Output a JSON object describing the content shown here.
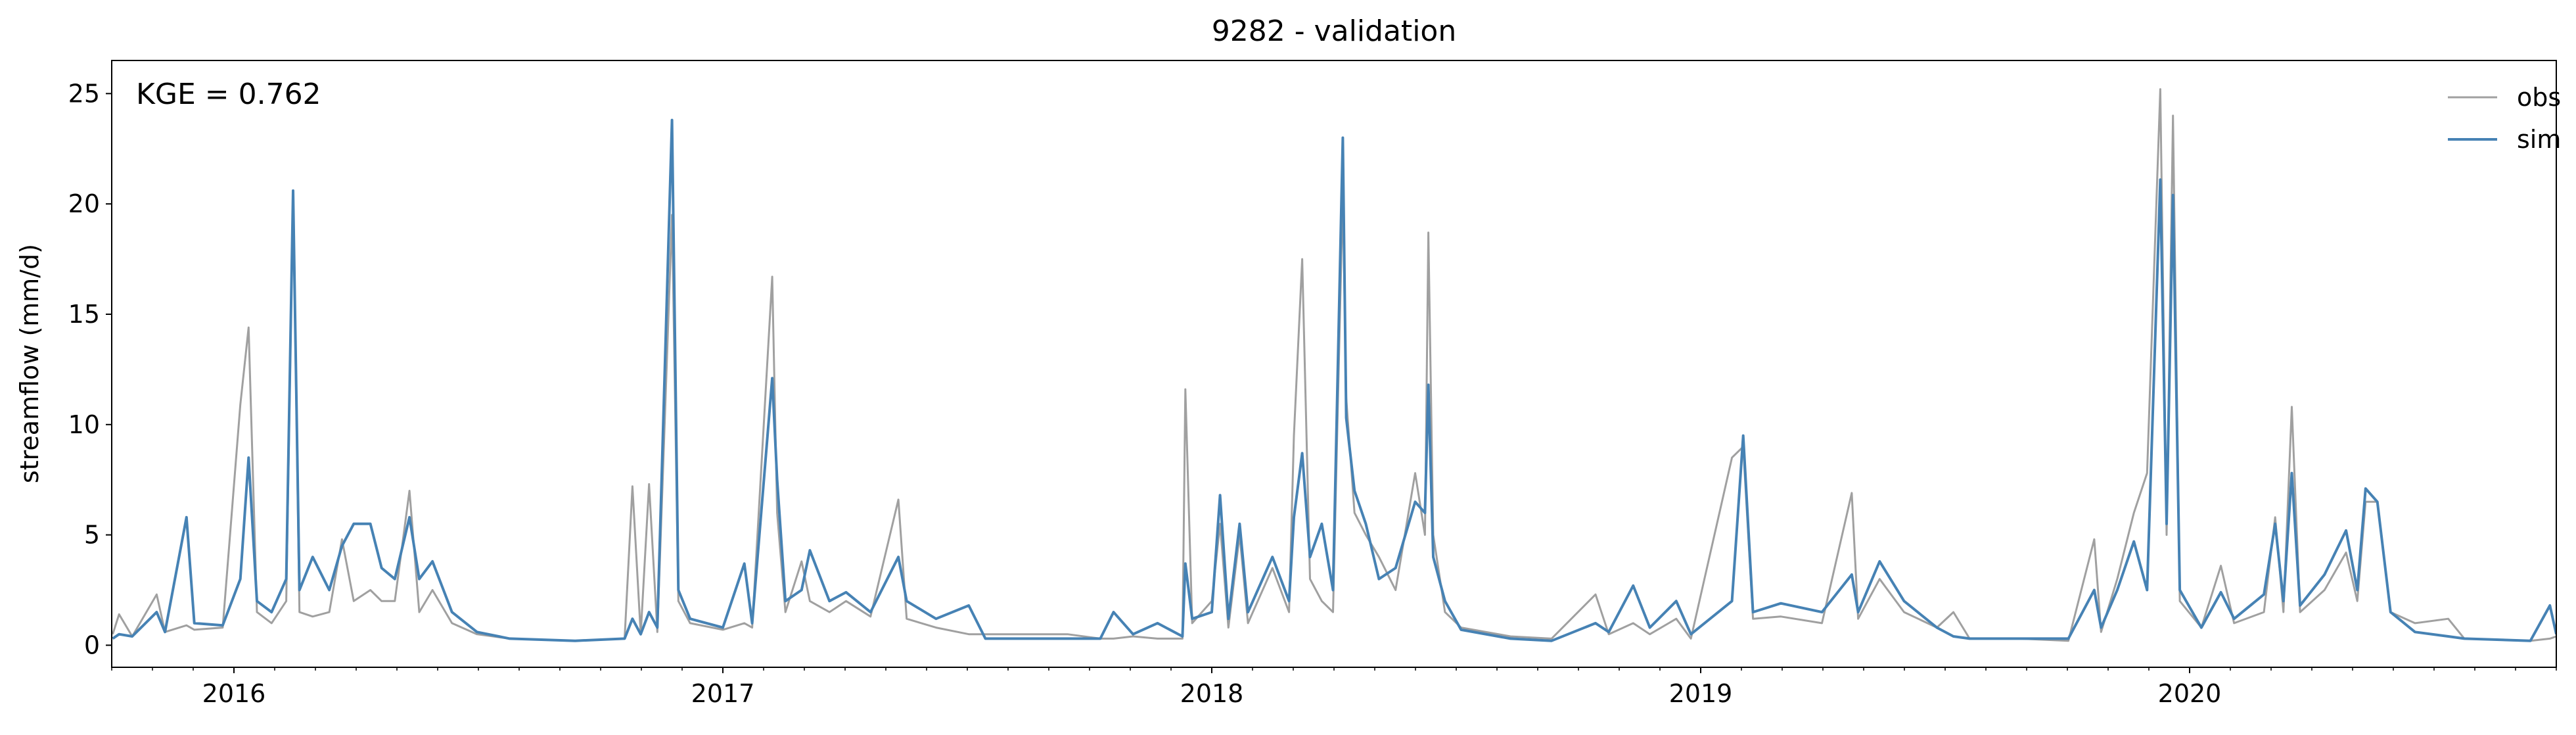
{
  "chart_data": {
    "type": "line",
    "title": "9282 - validation",
    "y_label": "streamflow (mm/d)",
    "annotation": "KGE = 0.762",
    "legend": "upper right",
    "x": [
      2015.752,
      2015.765,
      2015.792,
      2015.842,
      2015.859,
      2015.903,
      2015.919,
      2015.977,
      2016.013,
      2016.03,
      2016.047,
      2016.077,
      2016.107,
      2016.121,
      2016.134,
      2016.161,
      2016.195,
      2016.221,
      2016.245,
      2016.279,
      2016.302,
      2016.329,
      2016.359,
      2016.379,
      2016.406,
      2016.446,
      2016.497,
      2016.564,
      2016.698,
      2016.799,
      2016.815,
      2016.832,
      2016.849,
      2016.866,
      2016.896,
      2016.909,
      2016.933,
      2017.0,
      2017.044,
      2017.06,
      2017.101,
      2017.111,
      2017.128,
      2017.161,
      2017.178,
      2017.218,
      2017.252,
      2017.302,
      2017.359,
      2017.376,
      2017.436,
      2017.503,
      2017.537,
      2017.705,
      2017.772,
      2017.799,
      2017.839,
      2017.889,
      2017.94,
      2017.946,
      2017.96,
      2018.0,
      2018.017,
      2018.034,
      2018.057,
      2018.074,
      2018.124,
      2018.158,
      2018.168,
      2018.185,
      2018.201,
      2018.225,
      2018.248,
      2018.268,
      2018.275,
      2018.292,
      2018.315,
      2018.342,
      2018.376,
      2018.416,
      2018.436,
      2018.443,
      2018.453,
      2018.477,
      2018.51,
      2018.611,
      2018.695,
      2018.785,
      2018.812,
      2018.862,
      2018.896,
      2018.95,
      2018.98,
      2019.064,
      2019.087,
      2019.107,
      2019.164,
      2019.248,
      2019.309,
      2019.322,
      2019.366,
      2019.416,
      2019.483,
      2019.517,
      2019.55,
      2019.651,
      2019.752,
      2019.805,
      2019.819,
      2019.852,
      2019.886,
      2019.913,
      2019.94,
      2019.953,
      2019.966,
      2019.98,
      2020.024,
      2020.064,
      2020.091,
      2020.152,
      2020.175,
      2020.192,
      2020.209,
      2020.226,
      2020.276,
      2020.32,
      2020.343,
      2020.36,
      2020.384,
      2020.411,
      2020.461,
      2020.529,
      2020.562,
      2020.697,
      2020.737,
      2020.75
    ],
    "series": [
      {
        "name": "obs",
        "color": "#a0a0a0",
        "values": [
          0.5,
          1.4,
          0.4,
          2.3,
          0.6,
          0.9,
          0.7,
          0.8,
          10.9,
          14.4,
          1.5,
          1.0,
          2.0,
          20.5,
          1.5,
          1.3,
          1.5,
          4.8,
          2.0,
          2.5,
          2.0,
          2.0,
          7.0,
          1.5,
          2.5,
          1.0,
          0.5,
          0.3,
          0.2,
          0.3,
          7.2,
          0.5,
          7.3,
          0.6,
          19.5,
          2.0,
          1.0,
          0.7,
          1.0,
          0.8,
          16.7,
          6.0,
          1.5,
          3.8,
          2.0,
          1.5,
          2.0,
          1.3,
          6.6,
          1.2,
          0.8,
          0.5,
          0.5,
          0.5,
          0.3,
          0.3,
          0.4,
          0.3,
          0.3,
          11.6,
          1.0,
          2.0,
          5.5,
          0.8,
          5.0,
          1.0,
          3.5,
          1.5,
          9.5,
          17.5,
          3.0,
          2.0,
          1.5,
          20.5,
          11.2,
          6.0,
          5.0,
          4.0,
          2.5,
          7.8,
          5.0,
          18.7,
          5.0,
          1.5,
          0.8,
          0.4,
          0.3,
          2.3,
          0.5,
          1.0,
          0.5,
          1.2,
          0.3,
          8.5,
          9.0,
          1.2,
          1.3,
          1.0,
          6.9,
          1.2,
          3.0,
          1.5,
          0.8,
          1.5,
          0.3,
          0.3,
          0.2,
          4.8,
          0.6,
          3.0,
          6.0,
          7.8,
          25.2,
          5.0,
          24.0,
          2.0,
          0.8,
          3.6,
          1.0,
          1.5,
          5.8,
          1.5,
          10.8,
          1.5,
          2.5,
          4.2,
          2.0,
          6.5,
          6.5,
          1.5,
          1.0,
          1.2,
          0.3,
          0.2,
          0.3,
          0.4
        ]
      },
      {
        "name": "sim",
        "color": "#4682b4",
        "values": [
          0.3,
          0.5,
          0.4,
          1.5,
          0.6,
          5.8,
          1.0,
          0.9,
          3.0,
          8.5,
          2.0,
          1.5,
          3.0,
          20.6,
          2.5,
          4.0,
          2.5,
          4.5,
          5.5,
          5.5,
          3.5,
          3.0,
          5.8,
          3.0,
          3.8,
          1.5,
          0.6,
          0.3,
          0.2,
          0.3,
          1.2,
          0.5,
          1.5,
          0.8,
          23.8,
          2.5,
          1.2,
          0.8,
          3.7,
          1.0,
          12.1,
          7.5,
          2.0,
          2.5,
          4.3,
          2.0,
          2.4,
          1.5,
          4.0,
          2.0,
          1.2,
          1.8,
          0.3,
          0.3,
          0.3,
          1.5,
          0.5,
          1.0,
          0.4,
          3.7,
          1.2,
          1.5,
          6.8,
          1.2,
          5.5,
          1.5,
          4.0,
          2.0,
          5.8,
          8.7,
          4.0,
          5.5,
          2.5,
          23.0,
          10.3,
          7.0,
          5.5,
          3.0,
          3.5,
          6.5,
          6.0,
          11.8,
          4.0,
          2.0,
          0.7,
          0.3,
          0.2,
          1.0,
          0.6,
          2.7,
          0.8,
          2.0,
          0.5,
          2.0,
          9.5,
          1.5,
          1.9,
          1.5,
          3.2,
          1.5,
          3.8,
          2.0,
          0.8,
          0.4,
          0.3,
          0.3,
          0.3,
          2.5,
          0.8,
          2.5,
          4.7,
          2.5,
          21.1,
          5.5,
          20.4,
          2.5,
          0.8,
          2.4,
          1.2,
          2.3,
          5.5,
          2.0,
          7.8,
          1.8,
          3.2,
          5.2,
          2.5,
          7.1,
          6.5,
          1.5,
          0.6,
          0.4,
          0.3,
          0.2,
          1.8,
          0.5
        ]
      }
    ],
    "xlim": [
      2015.75,
      2020.75
    ],
    "xticks": [
      2016,
      2017,
      2018,
      2019,
      2020
    ],
    "ylim": [
      -1,
      26.5
    ],
    "yticks": [
      0,
      5,
      10,
      15,
      20,
      25
    ],
    "grid": false
  }
}
